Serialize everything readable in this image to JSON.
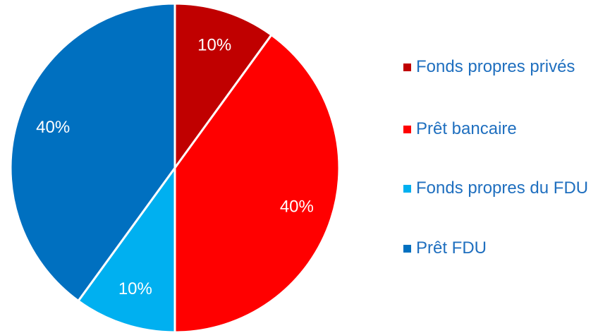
{
  "chart_data": {
    "type": "pie",
    "categories": [
      "Fonds propres privés",
      "Prêt bancaire",
      "Fonds propres du FDU",
      "Prêt FDU"
    ],
    "values": [
      10,
      40,
      10,
      40
    ],
    "value_labels": [
      "10%",
      "40%",
      "10%",
      "40%"
    ],
    "colors": [
      "#c00000",
      "#ff0000",
      "#00b0f0",
      "#0070c0"
    ],
    "legend": "right"
  }
}
